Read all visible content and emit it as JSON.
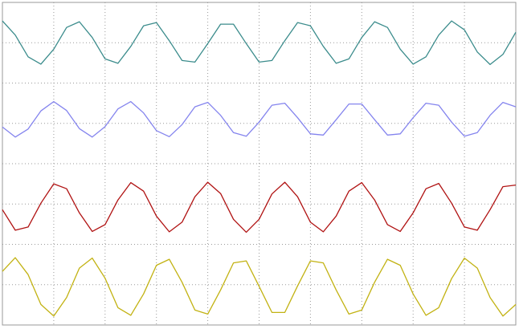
{
  "chart_data": {
    "type": "line",
    "x": [
      0,
      0.25,
      0.5,
      0.75,
      1,
      1.25,
      1.5,
      1.75,
      2,
      2.25,
      2.5,
      2.75,
      3,
      3.25,
      3.5,
      3.75,
      4,
      4.25,
      4.5,
      4.75,
      5,
      5.25,
      5.5,
      5.75,
      6,
      6.25,
      6.5,
      6.75,
      7,
      7.25,
      7.5,
      7.75,
      8,
      8.25,
      8.5,
      8.75,
      9,
      9.25,
      9.5,
      9.75,
      10
    ],
    "series": [
      {
        "color": "#3b8c8c",
        "values": [
          7.54,
          7.19,
          6.65,
          6.47,
          6.84,
          7.38,
          7.52,
          7.13,
          6.6,
          6.49,
          6.91,
          7.42,
          7.5,
          7.05,
          6.56,
          6.52,
          6.98,
          7.46,
          7.46,
          6.98,
          6.52,
          6.56,
          7.05,
          7.5,
          7.42,
          6.91,
          6.49,
          6.6,
          7.13,
          7.52,
          7.38,
          6.84,
          6.47,
          6.65,
          7.19,
          7.54,
          7.32,
          6.77,
          6.46,
          6.71,
          7.26
        ]
      },
      {
        "color": "#8484ee",
        "values": [
          4.91,
          4.66,
          4.86,
          5.31,
          5.54,
          5.32,
          4.87,
          4.66,
          4.92,
          5.36,
          5.54,
          5.26,
          4.82,
          4.67,
          4.97,
          5.41,
          5.52,
          5.2,
          4.77,
          4.68,
          5.03,
          5.45,
          5.5,
          5.14,
          4.74,
          4.71,
          5.09,
          5.48,
          5.48,
          5.09,
          4.71,
          4.74,
          5.14,
          5.5,
          5.45,
          5.03,
          4.68,
          4.77,
          5.2,
          5.52,
          5.41
        ]
      },
      {
        "color": "#b01212",
        "values": [
          2.86,
          2.35,
          2.43,
          3.02,
          3.5,
          3.38,
          2.78,
          2.32,
          2.49,
          3.1,
          3.53,
          3.32,
          2.7,
          2.31,
          2.55,
          3.18,
          3.54,
          3.26,
          2.62,
          2.3,
          2.62,
          3.25,
          3.54,
          3.18,
          2.55,
          2.31,
          2.7,
          3.32,
          3.53,
          3.1,
          2.49,
          2.32,
          2.78,
          3.38,
          3.51,
          3.02,
          2.43,
          2.35,
          2.86,
          3.43,
          3.47
        ]
      },
      {
        "color": "#c2b212",
        "values": [
          1.33,
          1.67,
          1.25,
          0.51,
          0.22,
          0.68,
          1.41,
          1.66,
          1.16,
          0.43,
          0.24,
          0.77,
          1.48,
          1.63,
          1.06,
          0.37,
          0.27,
          0.87,
          1.54,
          1.59,
          0.96,
          0.31,
          0.31,
          0.97,
          1.59,
          1.54,
          0.87,
          0.27,
          0.37,
          1.06,
          1.63,
          1.48,
          0.77,
          0.24,
          0.43,
          1.15,
          1.66,
          1.41,
          0.68,
          0.22,
          0.51
        ]
      }
    ],
    "xlim": [
      0,
      10
    ],
    "ylim": [
      0,
      8
    ],
    "xticks": [
      0,
      1,
      2,
      3,
      4,
      5,
      6,
      7,
      8,
      9,
      10
    ],
    "yticks": [
      0,
      1,
      2,
      3,
      4,
      5,
      6,
      7,
      8
    ],
    "grid": true
  }
}
